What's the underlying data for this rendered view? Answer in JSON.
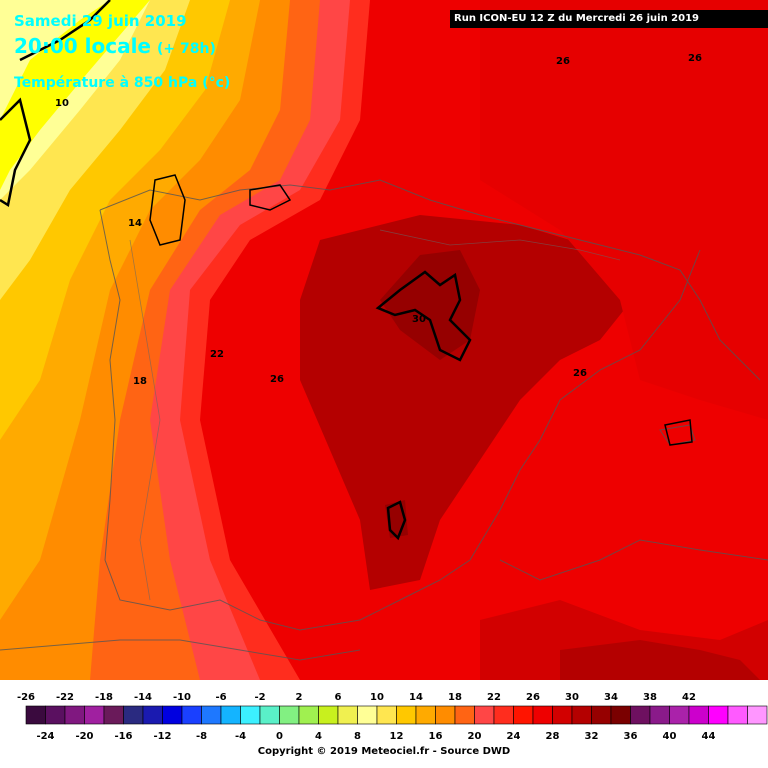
{
  "header": {
    "date_line": "Samedi 29 juin 2019",
    "time_line": "20:00 locale",
    "lead_time": "(+ 78h)",
    "parameter": "Température à 850 hPa (°c)",
    "run_info": "Run ICON-EU 12 Z du Mercredi 26 juin 2019"
  },
  "map": {
    "field": "850 hPa temperature",
    "units": "°C",
    "isotherm_labels": [
      "10",
      "14",
      "18",
      "22",
      "26",
      "26",
      "26",
      "30",
      "26"
    ]
  },
  "legend": {
    "top_labels": [
      "-26",
      "-22",
      "-18",
      "-14",
      "-10",
      "-6",
      "-2",
      "2",
      "6",
      "10",
      "14",
      "18",
      "22",
      "26",
      "30",
      "34",
      "38",
      "42"
    ],
    "bottom_labels": [
      "-24",
      "-20",
      "-16",
      "-12",
      "-8",
      "-4",
      "0",
      "4",
      "8",
      "12",
      "16",
      "20",
      "24",
      "28",
      "32",
      "36",
      "40",
      "44"
    ],
    "colors": [
      "#3a0a3e",
      "#5a1060",
      "#801880",
      "#a020a0",
      "#6a1a5a",
      "#2a2a80",
      "#1a1ab0",
      "#0000e0",
      "#1a40ff",
      "#1e78ff",
      "#14b4ff",
      "#3cf0ff",
      "#5af0c8",
      "#82f082",
      "#a0f050",
      "#c8f01e",
      "#f0f050",
      "#ffff96",
      "#ffe650",
      "#ffc800",
      "#ffaa00",
      "#ff8c00",
      "#ff6414",
      "#ff4646",
      "#ff2d1e",
      "#ff1400",
      "#ee0000",
      "#d20000",
      "#b40000",
      "#960000",
      "#7a0000",
      "#6e1060",
      "#8a1a8a",
      "#aa22aa",
      "#cc00cc",
      "#ff00ff",
      "#ff5aff",
      "#ff96ff"
    ],
    "copyright": "Copyright © 2019 Meteociel.fr - Source DWD"
  }
}
